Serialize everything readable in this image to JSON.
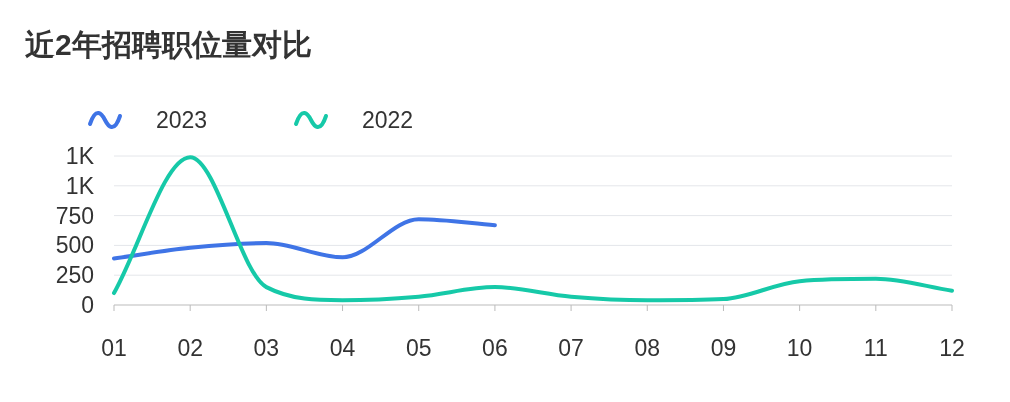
{
  "chart_data": {
    "type": "line",
    "title": "近2年招聘职位量对比",
    "categories": [
      "01",
      "02",
      "03",
      "04",
      "05",
      "06",
      "07",
      "08",
      "09",
      "10",
      "11",
      "12"
    ],
    "series": [
      {
        "name": "2023",
        "color": "#3f74e6",
        "values": [
          390,
          480,
          520,
          400,
          720,
          670,
          null,
          null,
          null,
          null,
          null,
          null
        ]
      },
      {
        "name": "2022",
        "color": "#16c9a8",
        "values": [
          100,
          1240,
          150,
          40,
          70,
          150,
          70,
          40,
          50,
          200,
          220,
          120
        ]
      }
    ],
    "ylim": [
      0,
      1250
    ],
    "yticks": [
      0,
      250,
      500,
      750,
      {
        "value": 1000,
        "label": "1K"
      },
      {
        "value": 1250,
        "label": "1K"
      }
    ],
    "grid": "y",
    "legend": "top left",
    "marker": "none",
    "line_style": "solid"
  }
}
